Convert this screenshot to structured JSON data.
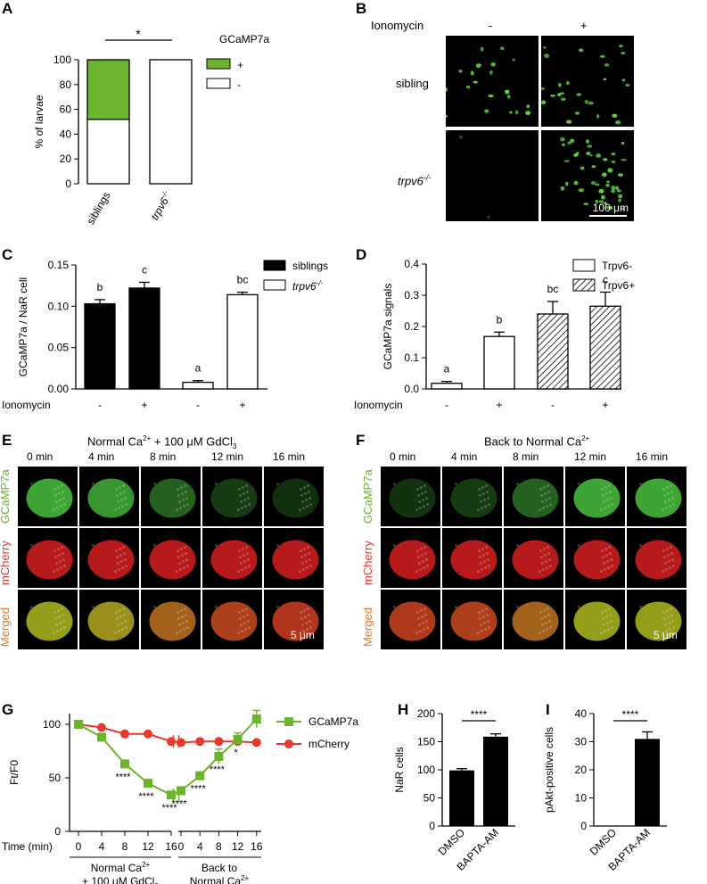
{
  "panel_letters": {
    "A": "A",
    "B": "B",
    "C": "C",
    "D": "D",
    "E": "E",
    "F": "F",
    "G": "G",
    "H": "H",
    "I": "I"
  },
  "panelB": {
    "ionomycin_label": "Ionomycin",
    "col_minus": "-",
    "col_plus": "+",
    "row_sibling": "sibling",
    "row_mutant": "trpv6",
    "row_mutant_sup": "-/-",
    "scale_bar": "100 μm"
  },
  "panelE": {
    "title": "Normal Ca",
    "title_sup": "2+",
    "title_rest": " + 100 μM GdCl",
    "title_sub": "3",
    "times": [
      "0 min",
      "4 min",
      "8 min",
      "12 min",
      "16 min"
    ],
    "rows": [
      "GCaMP7a",
      "mCherry",
      "Merged"
    ],
    "scale_bar": "5 μm",
    "green_intensity": [
      0.9,
      0.8,
      0.45,
      0.2,
      0.12
    ]
  },
  "panelF": {
    "title": "Back to Normal Ca",
    "title_sup": "2+",
    "times": [
      "0 min",
      "4 min",
      "8 min",
      "12 min",
      "16 min"
    ],
    "rows": [
      "GCaMP7a",
      "mCherry",
      "Merged"
    ],
    "scale_bar": "5 μm",
    "green_intensity": [
      0.15,
      0.2,
      0.45,
      0.9,
      0.9
    ]
  },
  "colors": {
    "green": "#6ab42e",
    "red": "#e8382e",
    "black": "#000000",
    "orange": "#e07a2e"
  },
  "chart_data": [
    {
      "id": "A",
      "type": "bar",
      "stacked": true,
      "categories": [
        "siblings",
        "trpv6-/-"
      ],
      "series": [
        {
          "name": "+",
          "values": [
            48,
            0
          ],
          "color": "#6ab42e"
        },
        {
          "name": "-",
          "values": [
            52,
            100
          ],
          "color": "#ffffff"
        }
      ],
      "ylabel": "% of larvae",
      "ylim": [
        0,
        100
      ],
      "yticks": [
        "0",
        "20",
        "40",
        "60",
        "80",
        "100"
      ],
      "legend_title": "GCaMP7a",
      "significance": "*",
      "x_labels": [
        "siblings",
        "trpv6",
        "-/-"
      ]
    },
    {
      "id": "C",
      "type": "bar",
      "categories": [
        "-",
        "+",
        "-",
        "+"
      ],
      "values": [
        0.103,
        0.122,
        0.008,
        0.114
      ],
      "errors": [
        0.005,
        0.007,
        0.002,
        0.003
      ],
      "letters": [
        "b",
        "c",
        "a",
        "bc"
      ],
      "fills": [
        "#000000",
        "#000000",
        "#ffffff",
        "#ffffff"
      ],
      "ylabel": "GCaMP7a / NaR cell",
      "ylim": [
        0,
        0.15
      ],
      "yticks": [
        "0.00",
        "0.05",
        "0.10",
        "0.15"
      ],
      "xlabel": "Ionomycin",
      "legend": [
        "siblings",
        "trpv6",
        "-/-"
      ]
    },
    {
      "id": "D",
      "type": "bar",
      "categories": [
        "-",
        "+",
        "-",
        "+"
      ],
      "values": [
        0.018,
        0.168,
        0.24,
        0.265
      ],
      "errors": [
        0.006,
        0.014,
        0.04,
        0.045
      ],
      "letters": [
        "a",
        "b",
        "bc",
        "c"
      ],
      "patterns": [
        "open",
        "open",
        "hatched",
        "hatched"
      ],
      "ylabel": "GCaMP7a signals",
      "ylim": [
        0,
        0.4
      ],
      "yticks": [
        "0.0",
        "0.1",
        "0.2",
        "0.3",
        "0.4"
      ],
      "xlabel": "Ionomycin",
      "legend": [
        "Trpv6-",
        "Trpv6+"
      ]
    },
    {
      "id": "G",
      "type": "line",
      "x_segment1": [
        0,
        4,
        8,
        12,
        16
      ],
      "x_segment2": [
        0,
        4,
        8,
        12,
        16
      ],
      "series": [
        {
          "name": "GCaMP7a",
          "seg1": [
            100,
            88,
            63,
            45,
            34
          ],
          "seg2": [
            38,
            52,
            70,
            86,
            105
          ],
          "err1": [
            0,
            2,
            3,
            2,
            2
          ],
          "err2": [
            2,
            3,
            7,
            6,
            8
          ],
          "color": "#6ab42e",
          "marker": "square"
        },
        {
          "name": "mCherry",
          "seg1": [
            100,
            97,
            91,
            91,
            84
          ],
          "seg2": [
            83,
            84,
            84,
            84,
            83
          ],
          "color": "#e8382e",
          "marker": "circle"
        }
      ],
      "ylabel": "Ft/F0",
      "ylim": [
        0,
        110
      ],
      "yticks": [
        "0",
        "50",
        "100"
      ],
      "xtick_labels": [
        "0",
        "4",
        "8",
        "12",
        "16"
      ],
      "xlabel": "Time (min)",
      "stars1": [
        "****",
        "****",
        "****"
      ],
      "stars2": [
        "****",
        "****",
        "****",
        "*"
      ],
      "seg1_label_line1": "Normal Ca",
      "seg1_label_sup": "2+",
      "seg1_label_line2": "+ 100 μM GdCl",
      "seg1_label_sub": "3",
      "seg2_label_line1": "Back to",
      "seg2_label_line2": "Normal Ca",
      "seg2_label_sup": "2+"
    },
    {
      "id": "H",
      "type": "bar",
      "categories": [
        "DMSO",
        "BAPTA-AM"
      ],
      "values": [
        99,
        159
      ],
      "errors": [
        3,
        5
      ],
      "ylabel": "NaR cells",
      "ylim": [
        0,
        200
      ],
      "yticks": [
        "0",
        "50",
        "100",
        "150",
        "200"
      ],
      "significance": "****"
    },
    {
      "id": "I",
      "type": "bar",
      "categories": [
        "DMSO",
        "BAPTA-AM"
      ],
      "values": [
        0,
        31
      ],
      "errors": [
        0,
        2.5
      ],
      "ylabel": "pAkt-positive cells",
      "ylim": [
        0,
        40
      ],
      "yticks": [
        "0",
        "10",
        "20",
        "30",
        "40"
      ],
      "significance": "****"
    }
  ]
}
